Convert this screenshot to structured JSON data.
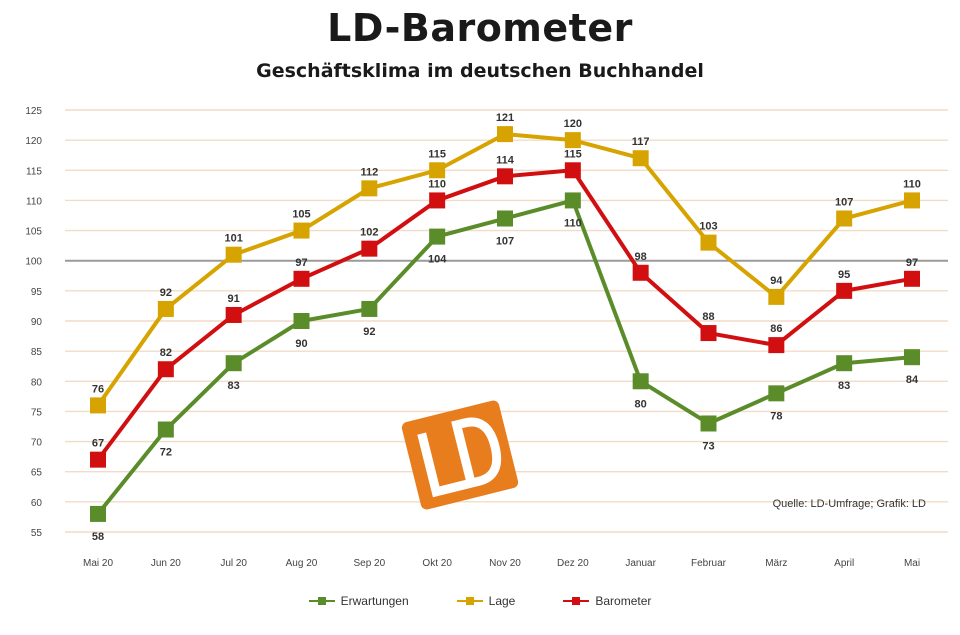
{
  "header": {
    "title": "LD-Barometer",
    "subtitle": "Geschäftsklima im deutschen Buchhandel"
  },
  "source_note": "Quelle: LD-Umfrage; Grafik: LD",
  "legend": [
    {
      "label": "Erwartungen",
      "color": "#5b8c2a"
    },
    {
      "label": "Lage",
      "color": "#d6a300"
    },
    {
      "label": "Barometer",
      "color": "#d10f10"
    }
  ],
  "colors": {
    "erwartungen": "#5b8c2a",
    "lage": "#d6a300",
    "barometer": "#d10f10",
    "gridline": "#f2dcc8",
    "baseline": "#9a9a9a",
    "logo": "#e87d1e"
  },
  "logo": {
    "text": "LD",
    "icon": "ld-logo-icon"
  },
  "chart_data": {
    "type": "line",
    "title": "LD-Barometer",
    "subtitle": "Geschäftsklima im deutschen Buchhandel",
    "categories": [
      "Mai 20",
      "Jun 20",
      "Jul 20",
      "Aug 20",
      "Sep 20",
      "Okt 20",
      "Nov 20",
      "Dez 20",
      "Januar",
      "Februar",
      "März",
      "April",
      "Mai"
    ],
    "yticks": [
      55,
      60,
      65,
      70,
      75,
      80,
      85,
      90,
      95,
      100,
      105,
      110,
      115,
      120,
      125
    ],
    "ylim": [
      55,
      125
    ],
    "reference_line": 100,
    "grid": true,
    "legend_position": "bottom",
    "series": [
      {
        "name": "Erwartungen",
        "values": [
          58,
          72,
          83,
          90,
          92,
          104,
          107,
          110,
          80,
          73,
          78,
          83,
          84
        ]
      },
      {
        "name": "Lage",
        "values": [
          76,
          92,
          101,
          105,
          112,
          115,
          121,
          120,
          117,
          103,
          94,
          107,
          110
        ]
      },
      {
        "name": "Barometer",
        "values": [
          67,
          82,
          91,
          97,
          102,
          110,
          114,
          115,
          98,
          88,
          86,
          95,
          97
        ]
      }
    ]
  }
}
